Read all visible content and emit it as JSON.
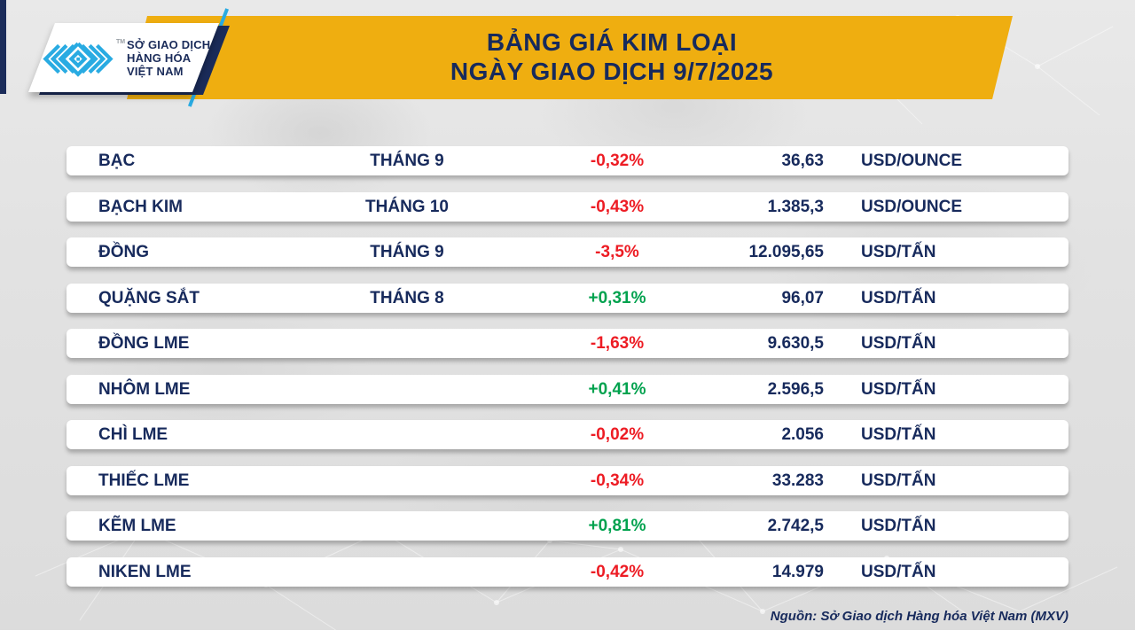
{
  "header": {
    "logo": {
      "lines": [
        "SỞ GIAO DỊCH",
        "HÀNG HÓA",
        "VIỆT NAM"
      ],
      "trademark": "TM"
    },
    "title_line1": "BẢNG GIÁ KIM LOẠI",
    "title_line2": "NGÀY GIAO DỊCH 9/7/2025"
  },
  "footer": {
    "source": "Nguồn: Sở Giao dịch Hàng hóa Việt Nam (MXV)"
  },
  "colors": {
    "banner_yellow": "#efae10",
    "navy": "#172a5c",
    "cyan": "#29abe2",
    "down_red": "#ed1c24",
    "up_green": "#00a24e"
  },
  "chart_data": {
    "type": "table",
    "title": "BẢNG GIÁ KIM LOẠI - NGÀY GIAO DỊCH 9/7/2025",
    "columns": [
      "commodity",
      "contract_month",
      "change_percent",
      "price",
      "unit"
    ],
    "rows": [
      {
        "name": "BẠC",
        "month": "THÁNG 9",
        "change": "-0,32%",
        "direction": "down",
        "price": "36,63",
        "unit": "USD/OUNCE"
      },
      {
        "name": "BẠCH KIM",
        "month": "THÁNG 10",
        "change": "-0,43%",
        "direction": "down",
        "price": "1.385,3",
        "unit": "USD/OUNCE"
      },
      {
        "name": "ĐỒNG",
        "month": "THÁNG 9",
        "change": "-3,5%",
        "direction": "down",
        "price": "12.095,65",
        "unit": "USD/TẤN"
      },
      {
        "name": "QUẶNG SẮT",
        "month": "THÁNG 8",
        "change": "+0,31%",
        "direction": "up",
        "price": "96,07",
        "unit": "USD/TẤN"
      },
      {
        "name": "ĐỒNG LME",
        "month": "",
        "change": "-1,63%",
        "direction": "down",
        "price": "9.630,5",
        "unit": "USD/TẤN"
      },
      {
        "name": "NHÔM LME",
        "month": "",
        "change": "+0,41%",
        "direction": "up",
        "price": "2.596,5",
        "unit": "USD/TẤN"
      },
      {
        "name": "CHÌ LME",
        "month": "",
        "change": "-0,02%",
        "direction": "down",
        "price": "2.056",
        "unit": "USD/TẤN"
      },
      {
        "name": "THIẾC LME",
        "month": "",
        "change": "-0,34%",
        "direction": "down",
        "price": "33.283",
        "unit": "USD/TẤN"
      },
      {
        "name": "KẼM LME",
        "month": "",
        "change": "+0,81%",
        "direction": "up",
        "price": "2.742,5",
        "unit": "USD/TẤN"
      },
      {
        "name": "NIKEN LME",
        "month": "",
        "change": "-0,42%",
        "direction": "down",
        "price": "14.979",
        "unit": "USD/TẤN"
      }
    ]
  }
}
